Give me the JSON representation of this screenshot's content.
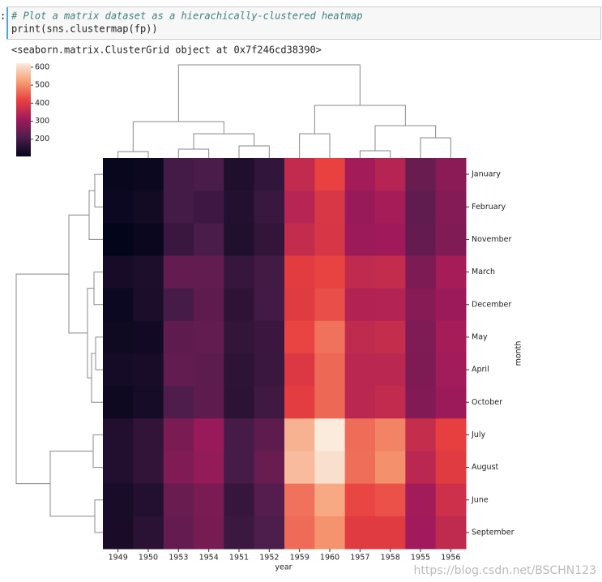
{
  "cell": {
    "prompt": ":",
    "code": [
      "# Plot a matrix dataset as a hierachically-clustered heatmap",
      "print(sns.clustermap(fp))"
    ]
  },
  "output": "<seaborn.matrix.ClusterGrid object at 0x7f246cd38390>",
  "chart_data": {
    "type": "heatmap",
    "xlabel": "year",
    "ylabel": "month",
    "columns": [
      "1949",
      "1950",
      "1953",
      "1954",
      "1951",
      "1952",
      "1959",
      "1960",
      "1957",
      "1958",
      "1955",
      "1956"
    ],
    "rows": [
      "January",
      "February",
      "November",
      "March",
      "December",
      "May",
      "April",
      "October",
      "July",
      "August",
      "June",
      "September"
    ],
    "values": [
      [
        112,
        115,
        196,
        204,
        145,
        171,
        360,
        417,
        315,
        340,
        242,
        284
      ],
      [
        118,
        126,
        196,
        188,
        150,
        180,
        342,
        391,
        301,
        318,
        233,
        277
      ],
      [
        104,
        114,
        180,
        203,
        146,
        172,
        362,
        390,
        305,
        310,
        237,
        271
      ],
      [
        132,
        141,
        236,
        235,
        178,
        193,
        406,
        419,
        356,
        362,
        267,
        317
      ],
      [
        118,
        140,
        201,
        229,
        166,
        194,
        405,
        432,
        336,
        337,
        278,
        306
      ],
      [
        121,
        125,
        229,
        234,
        172,
        183,
        420,
        472,
        355,
        363,
        270,
        318
      ],
      [
        129,
        135,
        235,
        227,
        163,
        181,
        396,
        461,
        348,
        348,
        269,
        313
      ],
      [
        119,
        133,
        211,
        229,
        162,
        191,
        407,
        461,
        347,
        359,
        274,
        306
      ],
      [
        148,
        170,
        264,
        302,
        199,
        230,
        548,
        622,
        465,
        491,
        364,
        413
      ],
      [
        148,
        170,
        272,
        293,
        199,
        242,
        559,
        606,
        467,
        505,
        347,
        405
      ],
      [
        135,
        149,
        243,
        264,
        178,
        218,
        472,
        535,
        422,
        435,
        315,
        374
      ],
      [
        136,
        158,
        237,
        259,
        184,
        209,
        463,
        508,
        404,
        404,
        312,
        355
      ]
    ],
    "clim": [
      104,
      622
    ],
    "cticks": [
      200,
      300,
      400,
      500,
      600
    ],
    "colormap": [
      "#03051a",
      "#4c1d4b",
      "#a11a5b",
      "#e83f3f",
      "#f69c73",
      "#faebdd"
    ]
  },
  "watermark": "https://blog.csdn.net/BSCHN123"
}
